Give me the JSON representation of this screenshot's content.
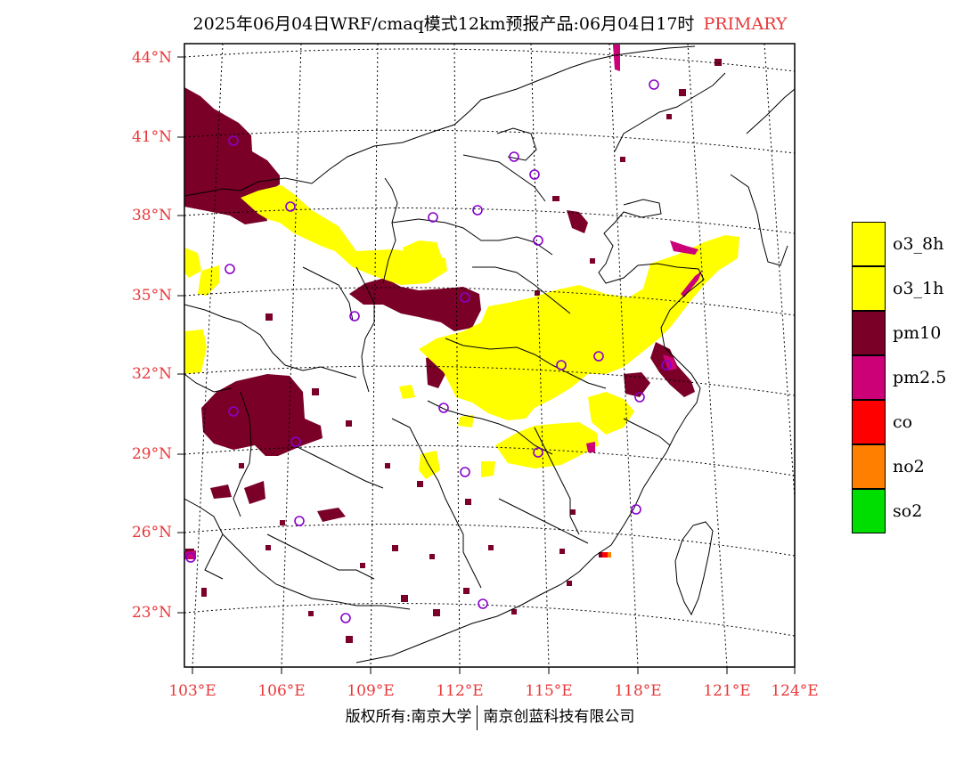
{
  "title": {
    "text": "2025年06月04日WRF/cmaq模式12km预报产品:06月04日17时",
    "tag": "PRIMARY"
  },
  "colors": {
    "o3_8h": "#ffff00",
    "o3_1h": "#ffff00",
    "pm10": "#7a0028",
    "pm2_5": "#cc0077",
    "co": "#ff0000",
    "no2": "#ff8000",
    "so2": "#00dd00",
    "label": "#e8383a",
    "station": "#8800cc"
  },
  "map": {
    "lat_labels": [
      "44°N",
      "41°N",
      "38°N",
      "35°N",
      "32°N",
      "29°N",
      "26°N",
      "23°N"
    ],
    "lon_labels": [
      "103°E",
      "106°E",
      "109°E",
      "112°E",
      "115°E",
      "118°E",
      "121°E",
      "124°E"
    ]
  },
  "legend": [
    {
      "label": "o3_8h",
      "color": "#ffff00"
    },
    {
      "label": "o3_1h",
      "color": "#ffff00"
    },
    {
      "label": "pm10",
      "color": "#7a0028"
    },
    {
      "label": "pm2.5",
      "color": "#cc0077"
    },
    {
      "label": "co",
      "color": "#ff0000"
    },
    {
      "label": "no2",
      "color": "#ff8000"
    },
    {
      "label": "so2",
      "color": "#00dd00"
    }
  ],
  "footer": {
    "left": "版权所有:南京大学",
    "right": "南京创蓝科技有限公司"
  }
}
